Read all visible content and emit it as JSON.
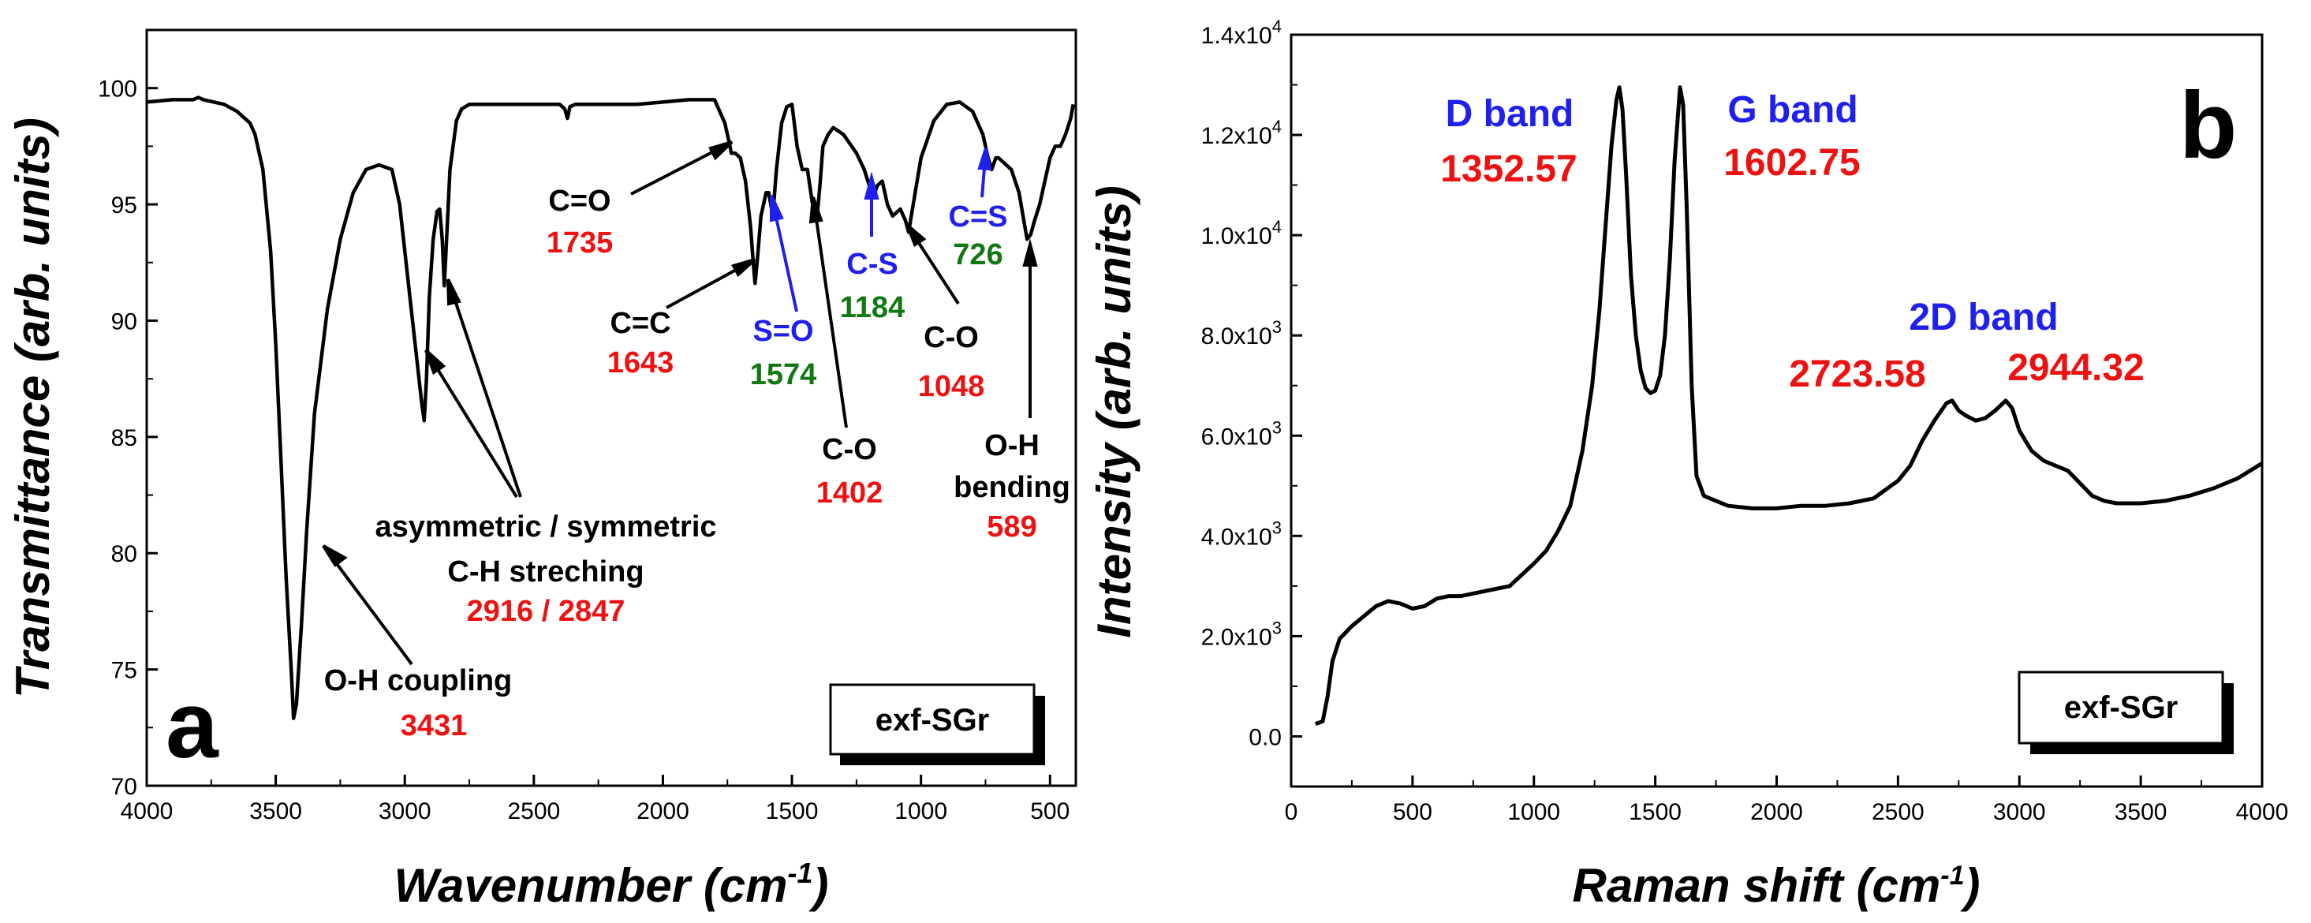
{
  "colors": {
    "red": "#ee1111",
    "green": "#117711",
    "blue": "#2020ee",
    "black": "#000000"
  },
  "chart_data": [
    {
      "type": "line",
      "panel": "a",
      "title": "",
      "xlabel": "Wavenumber (cm",
      "xlabel_sup": "-1",
      "xlabel_close": ")",
      "ylabel": "Transmittance (arb. units)",
      "xlim": [
        4000,
        400
      ],
      "ylim": [
        70,
        102.5
      ],
      "xticks": [
        4000,
        3500,
        3000,
        2500,
        2000,
        1500,
        1000,
        500
      ],
      "yticks": [
        70,
        75,
        80,
        85,
        90,
        95,
        100
      ],
      "legend": "exf-SGr",
      "series": [
        {
          "name": "exf-SGr",
          "x": [
            4000,
            3900,
            3820,
            3800,
            3780,
            3700,
            3650,
            3600,
            3580,
            3550,
            3520,
            3500,
            3480,
            3460,
            3440,
            3431,
            3420,
            3400,
            3380,
            3350,
            3300,
            3250,
            3200,
            3150,
            3100,
            3050,
            3020,
            3000,
            2970,
            2950,
            2935,
            2925,
            2916,
            2905,
            2890,
            2875,
            2865,
            2855,
            2847,
            2838,
            2825,
            2800,
            2780,
            2750,
            2700,
            2600,
            2500,
            2400,
            2380,
            2370,
            2360,
            2340,
            2300,
            2200,
            2100,
            2000,
            1900,
            1800,
            1760,
            1740,
            1735,
            1720,
            1700,
            1680,
            1660,
            1650,
            1643,
            1635,
            1620,
            1600,
            1590,
            1574,
            1560,
            1540,
            1520,
            1500,
            1480,
            1460,
            1440,
            1420,
            1402,
            1390,
            1380,
            1360,
            1340,
            1300,
            1250,
            1220,
            1200,
            1184,
            1170,
            1150,
            1130,
            1110,
            1080,
            1060,
            1048,
            1030,
            1000,
            950,
            900,
            850,
            800,
            760,
            740,
            726,
            710,
            700,
            680,
            650,
            620,
            600,
            589,
            575,
            560,
            540,
            520,
            500,
            480,
            460,
            440,
            420,
            410
          ],
          "y": [
            99.4,
            99.5,
            99.5,
            99.6,
            99.5,
            99.3,
            99.0,
            98.5,
            98.0,
            96.5,
            93.0,
            89.0,
            84.0,
            79.0,
            75.0,
            72.9,
            73.5,
            77.0,
            81.0,
            86.0,
            90.5,
            93.5,
            95.5,
            96.5,
            96.7,
            96.5,
            95.0,
            93.0,
            90.0,
            88.0,
            86.5,
            85.7,
            87.5,
            91.0,
            93.5,
            94.7,
            94.8,
            93.5,
            91.5,
            93.5,
            96.5,
            98.6,
            99.1,
            99.3,
            99.3,
            99.3,
            99.3,
            99.3,
            99.1,
            98.7,
            99.2,
            99.3,
            99.3,
            99.3,
            99.3,
            99.4,
            99.5,
            99.5,
            98.5,
            97.5,
            97.2,
            97.2,
            97.0,
            96.0,
            94.0,
            92.5,
            91.6,
            92.5,
            94.5,
            95.5,
            95.5,
            94.5,
            96.5,
            98.5,
            99.2,
            99.3,
            97.5,
            96.5,
            96.5,
            95.0,
            94.5,
            96.0,
            97.5,
            98.0,
            98.3,
            98.0,
            97.2,
            96.5,
            95.8,
            95.3,
            95.8,
            96.0,
            95.0,
            94.5,
            94.8,
            94.3,
            93.8,
            95.0,
            97.0,
            98.6,
            99.3,
            99.4,
            99.0,
            98.0,
            97.0,
            96.5,
            97.0,
            97.0,
            96.8,
            96.5,
            95.5,
            94.2,
            93.5,
            93.7,
            94.3,
            95.0,
            96.0,
            97.0,
            97.5,
            97.5,
            98.0,
            98.7,
            99.3
          ]
        }
      ],
      "annotations": [
        {
          "lines": [
            "O-H coupling"
          ],
          "value": "3431"
        },
        {
          "lines": [
            "asymmetric / symmetric",
            "C-H streching"
          ],
          "value": "2916 / 2847"
        },
        {
          "lines": [
            "C=O"
          ],
          "value": "1735"
        },
        {
          "lines": [
            "C=C"
          ],
          "value": "1643"
        },
        {
          "lines": [
            "S=O"
          ],
          "value": "1574"
        },
        {
          "lines": [
            "C-O"
          ],
          "value": "1402"
        },
        {
          "lines": [
            "C-S"
          ],
          "value": "1184"
        },
        {
          "lines": [
            "C-O"
          ],
          "value": "1048"
        },
        {
          "lines": [
            "C=S"
          ],
          "value": "726"
        },
        {
          "lines": [
            "O-H",
            "bending"
          ],
          "value": "589"
        }
      ]
    },
    {
      "type": "line",
      "panel": "b",
      "title": "",
      "xlabel": "Raman shift (cm",
      "xlabel_sup": "-1",
      "xlabel_close": ")",
      "ylabel": "Intensity (arb. units)",
      "xlim": [
        0,
        4000
      ],
      "ylim": [
        -1000,
        14000
      ],
      "xticks": [
        0,
        500,
        1000,
        1500,
        2000,
        2500,
        3000,
        3500,
        4000
      ],
      "yticks": [
        0,
        2000,
        4000,
        6000,
        8000,
        10000,
        12000,
        14000
      ],
      "yticklabels": [
        {
          "m": "0.0",
          "e": ""
        },
        {
          "m": "2.0x10",
          "e": "3"
        },
        {
          "m": "4.0x10",
          "e": "3"
        },
        {
          "m": "6.0x10",
          "e": "3"
        },
        {
          "m": "8.0x10",
          "e": "3"
        },
        {
          "m": "1.0x10",
          "e": "4"
        },
        {
          "m": "1.2x10",
          "e": "4"
        },
        {
          "m": "1.4x10",
          "e": "4"
        }
      ],
      "legend": "exf-SGr",
      "series": [
        {
          "name": "exf-SGr",
          "x": [
            100,
            130,
            150,
            170,
            200,
            250,
            300,
            350,
            400,
            450,
            500,
            550,
            600,
            650,
            700,
            800,
            900,
            1000,
            1050,
            1100,
            1150,
            1200,
            1240,
            1270,
            1300,
            1320,
            1340,
            1352,
            1365,
            1380,
            1400,
            1420,
            1440,
            1460,
            1480,
            1500,
            1520,
            1540,
            1560,
            1580,
            1602,
            1615,
            1630,
            1650,
            1670,
            1700,
            1750,
            1800,
            1900,
            2000,
            2100,
            2200,
            2300,
            2400,
            2500,
            2550,
            2600,
            2650,
            2700,
            2723,
            2750,
            2780,
            2820,
            2860,
            2900,
            2944,
            2970,
            3000,
            3050,
            3100,
            3150,
            3200,
            3250,
            3300,
            3350,
            3400,
            3500,
            3600,
            3700,
            3800,
            3900,
            4000
          ],
          "y": [
            250,
            300,
            800,
            1500,
            1950,
            2200,
            2400,
            2600,
            2700,
            2650,
            2550,
            2600,
            2750,
            2800,
            2800,
            2900,
            3000,
            3450,
            3700,
            4100,
            4600,
            5700,
            7000,
            8500,
            10500,
            11800,
            12700,
            12950,
            12500,
            11200,
            9200,
            8000,
            7300,
            6950,
            6850,
            6900,
            7200,
            8000,
            9500,
            11500,
            12950,
            12600,
            10500,
            7000,
            5200,
            4800,
            4700,
            4600,
            4550,
            4550,
            4600,
            4600,
            4650,
            4750,
            5100,
            5400,
            5900,
            6300,
            6650,
            6700,
            6500,
            6400,
            6300,
            6350,
            6500,
            6700,
            6550,
            6100,
            5700,
            5500,
            5400,
            5300,
            5050,
            4800,
            4700,
            4650,
            4650,
            4700,
            4800,
            4950,
            5150,
            5450
          ]
        }
      ],
      "annotations": [
        {
          "label": "D band",
          "value": "1352.57"
        },
        {
          "label": "G band",
          "value": "1602.75"
        },
        {
          "label": "2D band",
          "value": ""
        },
        {
          "label": "",
          "value": "2723.58"
        },
        {
          "label": "",
          "value": "2944.32"
        }
      ]
    }
  ]
}
